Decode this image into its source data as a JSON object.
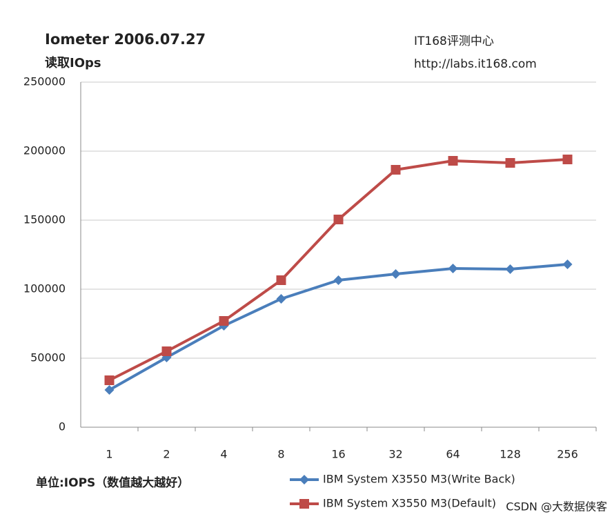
{
  "chart_data": {
    "type": "line",
    "title": "Iometer 2006.07.27",
    "subtitle": "读取IOps",
    "annotations": [
      "IT168评测中心",
      "http://labs.it168.com"
    ],
    "unit_note": "单位:IOPS（数值越大越好）",
    "watermark": "CSDN @大数据侠客",
    "categories": [
      "1",
      "2",
      "4",
      "8",
      "16",
      "32",
      "64",
      "128",
      "256"
    ],
    "series": [
      {
        "name": "IBM System X3550 M3(Write Back)",
        "color": "#4a7ebb",
        "marker": "diamond",
        "values": [
          27000,
          50500,
          73500,
          93000,
          106500,
          111000,
          115000,
          114500,
          118000
        ]
      },
      {
        "name": "IBM System X3550 M3(Default)",
        "color": "#be4b48",
        "marker": "square",
        "values": [
          34000,
          55000,
          77000,
          106500,
          150500,
          186500,
          193000,
          191500,
          194000
        ]
      }
    ],
    "ylim": [
      0,
      250000
    ],
    "yticks": [
      0,
      50000,
      100000,
      150000,
      200000,
      250000
    ],
    "grid": true,
    "legend": "bottom"
  }
}
